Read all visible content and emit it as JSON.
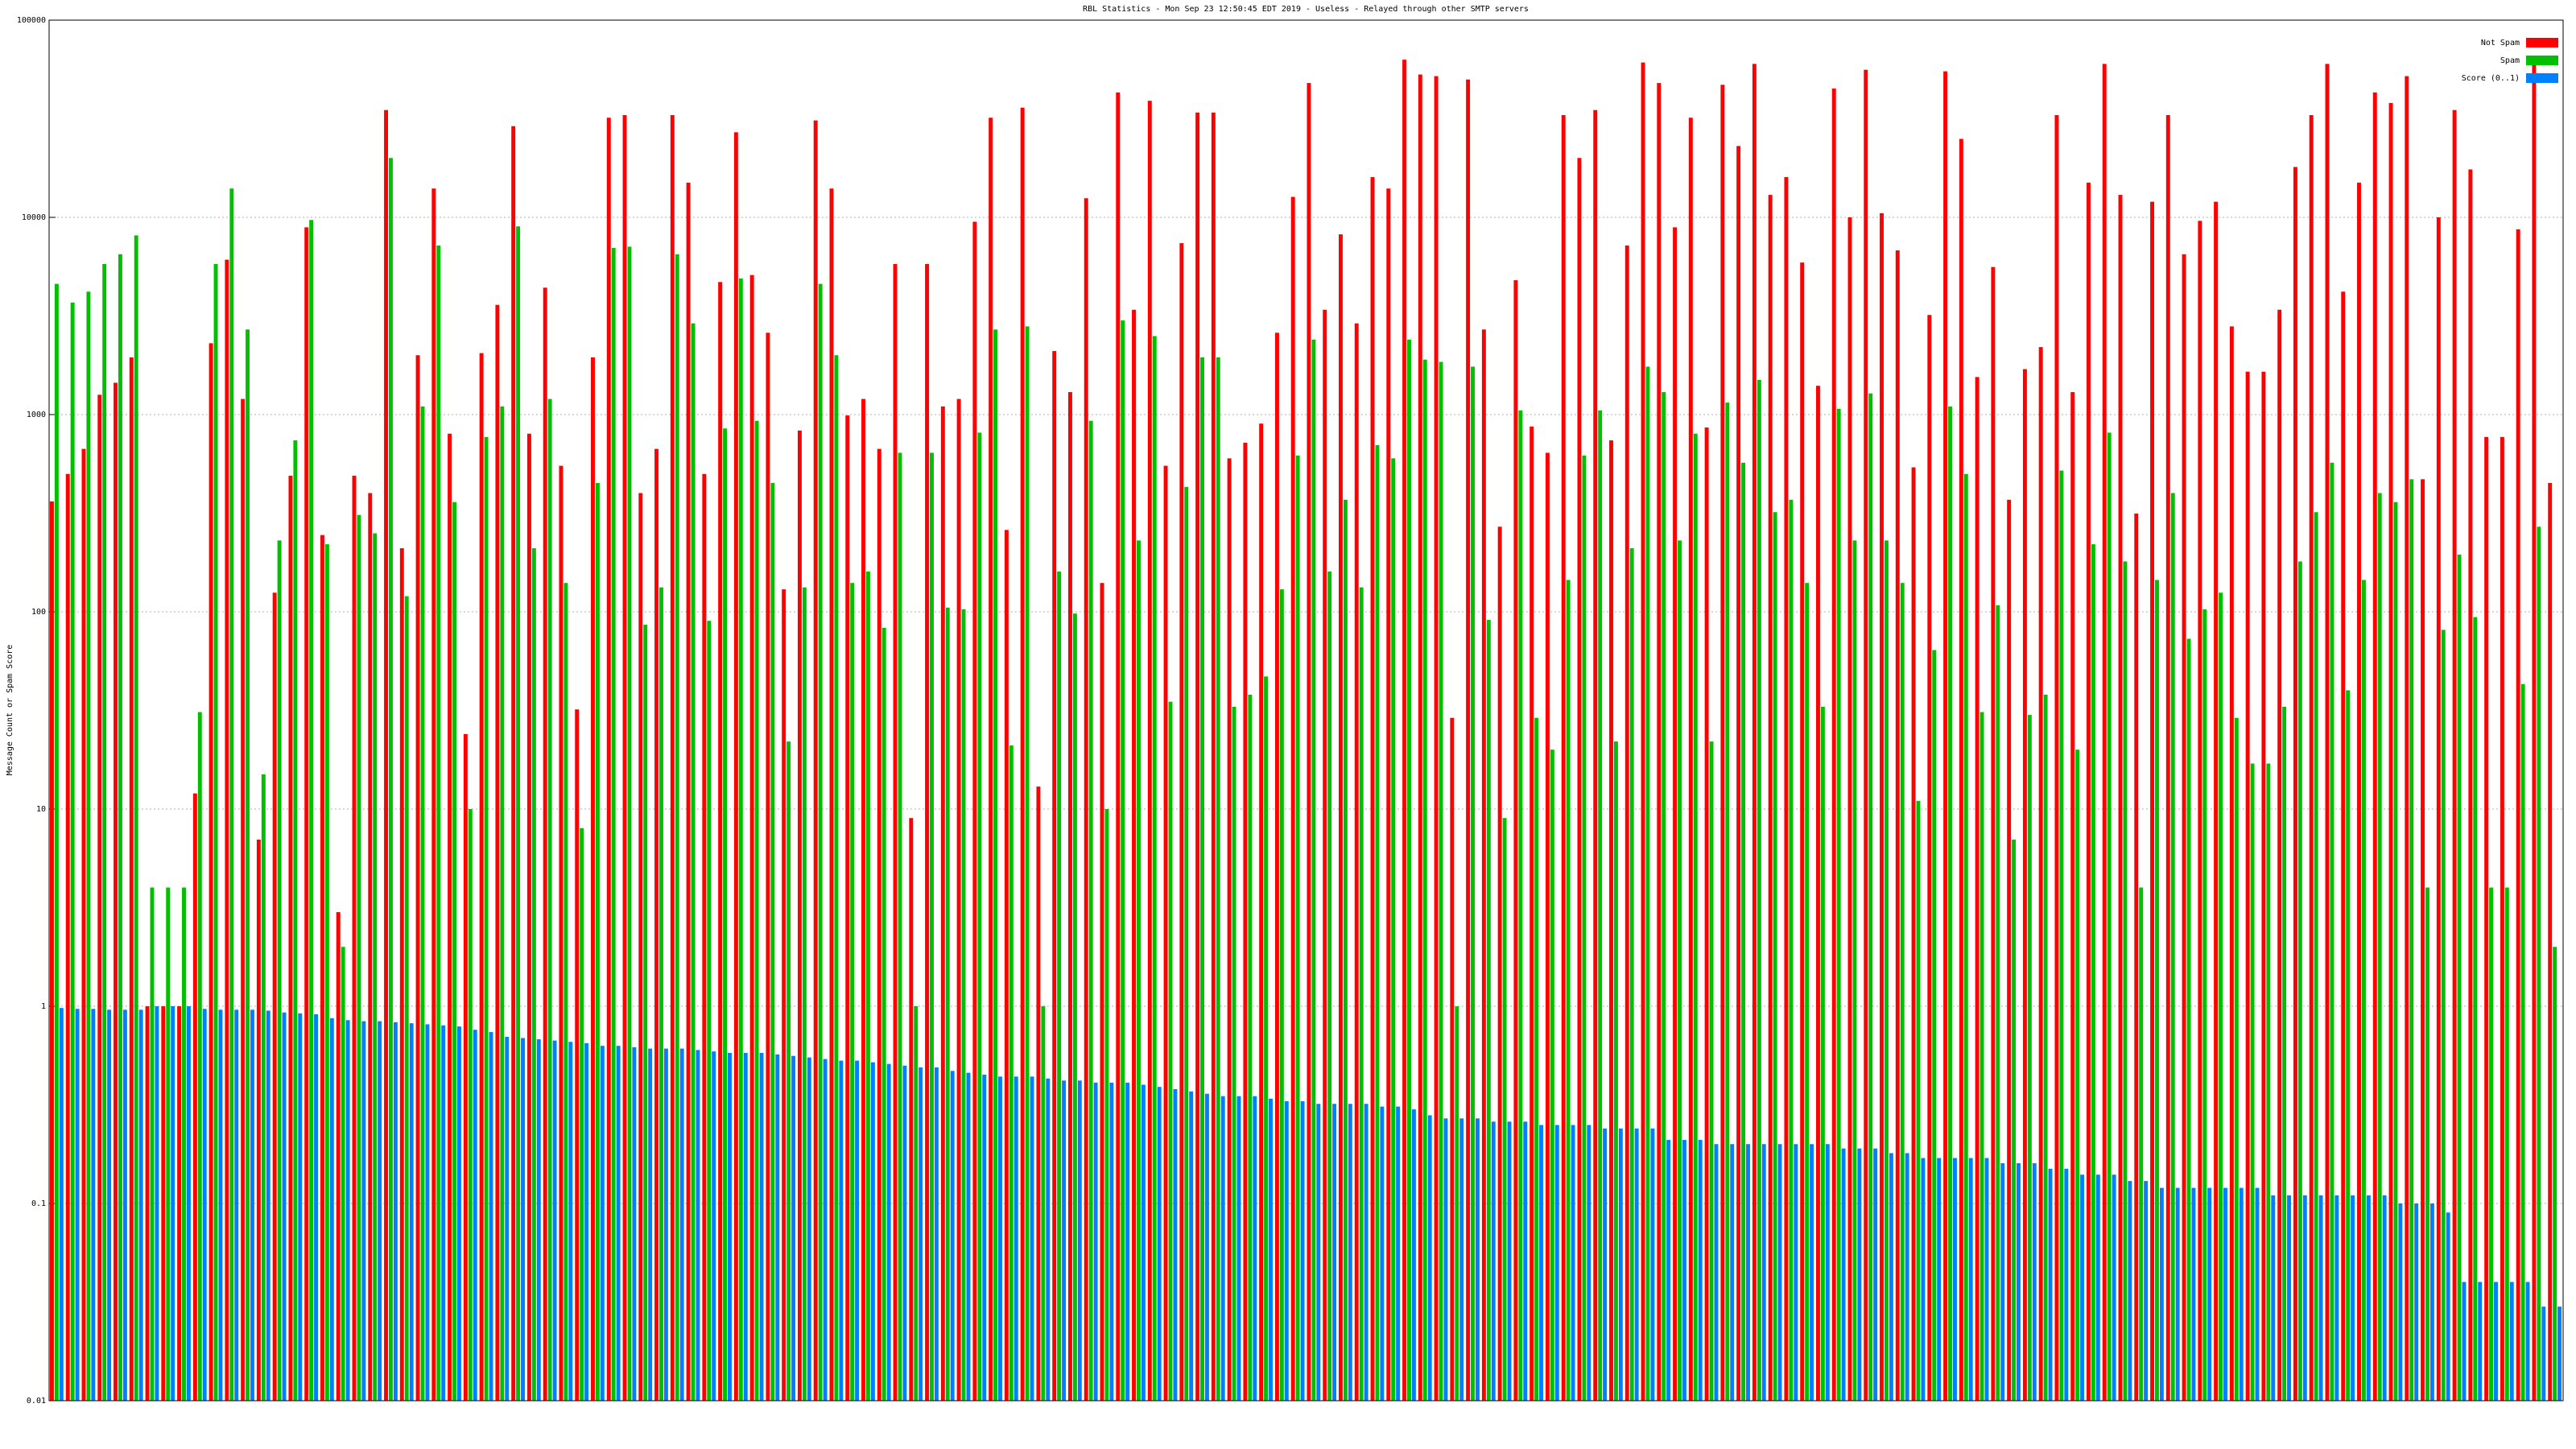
{
  "chart_data": {
    "type": "bar",
    "title": "RBL Statistics - Mon Sep 23 12:50:45 EDT 2019 - Useless - Relayed through other SMTP servers",
    "y_label": "Message Count or Spam Score",
    "log_scale": true,
    "grid": true,
    "legend_position": "top-right",
    "ylim": [
      0.01,
      100000
    ],
    "yticks": [
      0.01,
      0.1,
      1,
      10,
      100,
      1000,
      10000,
      100000
    ],
    "categories": [
      null,
      null,
      null,
      null,
      null,
      null,
      null,
      null,
      null,
      null,
      null,
      null,
      null,
      null,
      null,
      null,
      null,
      null,
      null,
      null,
      null,
      null,
      null,
      null,
      null,
      null,
      null,
      null,
      null,
      null,
      null,
      null,
      null,
      null,
      null,
      null,
      null,
      null,
      null,
      null,
      null,
      null,
      null,
      null,
      null,
      null,
      null,
      null,
      null,
      null,
      null,
      null,
      null,
      null,
      null,
      null,
      null,
      null,
      null,
      null,
      null,
      null,
      null,
      null,
      null,
      null,
      null,
      null,
      null,
      null,
      null,
      null,
      null,
      null,
      null,
      null,
      null,
      null,
      null,
      null,
      null,
      null,
      null,
      null,
      null,
      null,
      null,
      null,
      null,
      null,
      null,
      null,
      null,
      null,
      null,
      null,
      null,
      null,
      null,
      null,
      null,
      null,
      null,
      null,
      null,
      null,
      null,
      null,
      null,
      null,
      null,
      null,
      null,
      null,
      null,
      null,
      null,
      null,
      null,
      null,
      null,
      null,
      null,
      null,
      null,
      null,
      null,
      null,
      null,
      null,
      null,
      null,
      null,
      null,
      null,
      null,
      null,
      null,
      null,
      null,
      null,
      null,
      null,
      null,
      null,
      null,
      null,
      null,
      null,
      null,
      null,
      null,
      null,
      null,
      null,
      null,
      null,
      null
    ],
    "series": [
      {
        "name": "Not Spam",
        "color": "#ff0000",
        "values": [
          363,
          500,
          670,
          1260,
          1450,
          1950,
          1,
          1,
          1,
          12,
          2300,
          6100,
          1200,
          7,
          125,
          490,
          8900,
          245,
          3,
          490,
          400,
          35000,
          210,
          2000,
          14000,
          800,
          24,
          2050,
          3600,
          29000,
          800,
          4400,
          550,
          32,
          1950,
          32000,
          33000,
          400,
          670,
          33000,
          15000,
          500,
          4700,
          27000,
          5100,
          2600,
          130,
          830,
          31000,
          14000,
          990,
          1200,
          670,
          5800,
          9,
          5800,
          1100,
          1200,
          9500,
          32000,
          260,
          36000,
          13,
          2100,
          1300,
          12500,
          140,
          43000,
          3400,
          39000,
          550,
          7400,
          34000,
          34000,
          600,
          720,
          900,
          2600,
          12700,
          48000,
          3400,
          8200,
          2900,
          16000,
          14000,
          63000,
          53000,
          52000,
          29,
          50000,
          2700,
          270,
          4800,
          870,
          640,
          33000,
          20000,
          35000,
          740,
          7200,
          61000,
          48000,
          8900,
          32000,
          860,
          47000,
          23000,
          60000,
          13000,
          16000,
          5900,
          1400,
          45000,
          10000,
          56000,
          10500,
          6800,
          540,
          3200,
          55000,
          25000,
          1550,
          5600,
          370,
          1700,
          2200,
          33000,
          1300,
          15000,
          60000,
          13000,
          315,
          12000,
          33000,
          6500,
          9600,
          12000,
          2800,
          1650,
          1650,
          3400,
          18000,
          33000,
          60000,
          4200,
          15000,
          43000,
          38000,
          52000,
          470,
          10000,
          35000,
          17500,
          770,
          770,
          8700,
          63000,
          450
        ]
      },
      {
        "name": "Spam",
        "color": "#00c000",
        "values": [
          4600,
          3700,
          4200,
          5800,
          6500,
          8100,
          4,
          4,
          4,
          31,
          5800,
          14000,
          2700,
          15,
          230,
          740,
          9700,
          220,
          2,
          310,
          250,
          20000,
          120,
          1100,
          7200,
          360,
          10,
          770,
          1100,
          9000,
          210,
          1200,
          140,
          8,
          450,
          7000,
          7100,
          86,
          133,
          6500,
          2900,
          90,
          850,
          4900,
          930,
          450,
          22,
          133,
          4600,
          2000,
          140,
          160,
          83,
          640,
          1,
          640,
          105,
          103,
          810,
          2700,
          21,
          2800,
          1,
          160,
          98,
          930,
          10,
          3000,
          230,
          2500,
          35,
          430,
          1950,
          1950,
          33,
          38,
          47,
          130,
          620,
          2400,
          160,
          370,
          133,
          700,
          600,
          2400,
          1900,
          1850,
          1,
          1750,
          91,
          9,
          1050,
          29,
          20,
          145,
          620,
          1050,
          22,
          210,
          1750,
          1300,
          230,
          800,
          22,
          1150,
          570,
          1500,
          320,
          370,
          140,
          33,
          1070,
          230,
          1280,
          230,
          140,
          11,
          64,
          1100,
          500,
          31,
          108,
          7,
          30,
          38,
          520,
          20,
          220,
          810,
          180,
          4,
          145,
          400,
          73,
          103,
          125,
          29,
          17,
          17,
          33,
          180,
          320,
          570,
          40,
          145,
          400,
          360,
          470,
          4,
          81,
          195,
          94,
          4,
          4,
          43,
          270,
          2
        ]
      },
      {
        "name": "Score (0..1)",
        "color": "#0080ff",
        "values": [
          0.98,
          0.97,
          0.97,
          0.96,
          0.96,
          0.96,
          1,
          1,
          1,
          0.97,
          0.96,
          0.96,
          0.96,
          0.95,
          0.93,
          0.92,
          0.91,
          0.87,
          0.85,
          0.84,
          0.84,
          0.83,
          0.82,
          0.81,
          0.8,
          0.79,
          0.76,
          0.74,
          0.7,
          0.69,
          0.68,
          0.67,
          0.66,
          0.65,
          0.63,
          0.63,
          0.62,
          0.61,
          0.61,
          0.61,
          0.6,
          0.59,
          0.58,
          0.58,
          0.58,
          0.57,
          0.56,
          0.55,
          0.54,
          0.53,
          0.53,
          0.52,
          0.51,
          0.5,
          0.49,
          0.49,
          0.47,
          0.46,
          0.45,
          0.44,
          0.44,
          0.44,
          0.43,
          0.42,
          0.42,
          0.41,
          0.41,
          0.41,
          0.4,
          0.39,
          0.38,
          0.37,
          0.36,
          0.35,
          0.35,
          0.35,
          0.34,
          0.33,
          0.33,
          0.32,
          0.32,
          0.32,
          0.32,
          0.31,
          0.31,
          0.3,
          0.28,
          0.27,
          0.27,
          0.27,
          0.26,
          0.26,
          0.26,
          0.25,
          0.25,
          0.25,
          0.25,
          0.24,
          0.24,
          0.24,
          0.24,
          0.21,
          0.21,
          0.21,
          0.2,
          0.2,
          0.2,
          0.2,
          0.2,
          0.2,
          0.2,
          0.2,
          0.19,
          0.19,
          0.19,
          0.18,
          0.18,
          0.17,
          0.17,
          0.17,
          0.17,
          0.17,
          0.16,
          0.16,
          0.16,
          0.15,
          0.15,
          0.14,
          0.14,
          0.14,
          0.13,
          0.13,
          0.12,
          0.12,
          0.12,
          0.12,
          0.12,
          0.12,
          0.12,
          0.11,
          0.11,
          0.11,
          0.11,
          0.11,
          0.11,
          0.11,
          0.11,
          0.1,
          0.1,
          0.1,
          0.09,
          0.04,
          0.04,
          0.04,
          0.04,
          0.04,
          0.03,
          0.03
        ]
      }
    ]
  }
}
